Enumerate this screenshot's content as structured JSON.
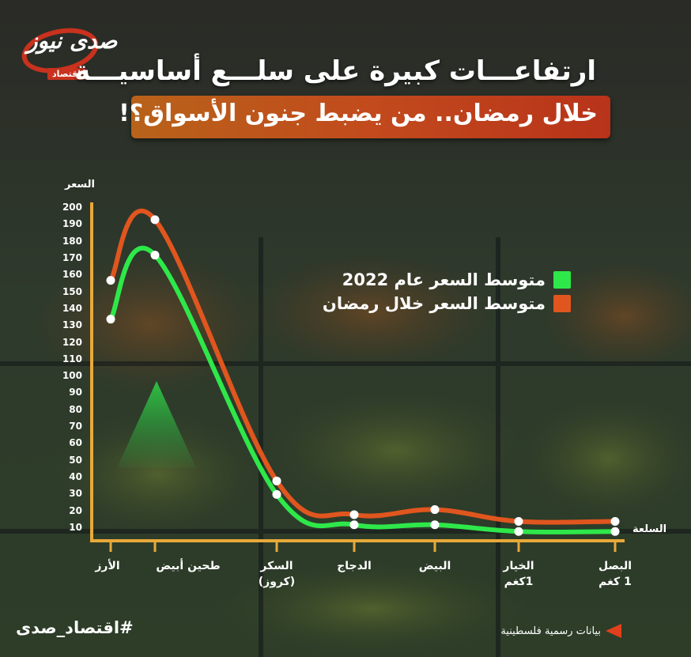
{
  "brand": {
    "logo_text": "صدى نيوز",
    "logo_sub": "اقتصاد",
    "hashtag": "#اقتصاد_صدى"
  },
  "header": {
    "title_line1": "ارتفاعـــات كبيرة على سلـــع أساسيـــة",
    "title_line2": "خلال رمضان.. من يضبط جنون الأسواق؟!"
  },
  "source": "بيانات رسمية فلسطينية",
  "colors": {
    "accent_orange": "#e0561e",
    "accent_green": "#2ee84a",
    "axis": "#e8a93a"
  },
  "chart_data": {
    "type": "line",
    "ylabel": "السعر",
    "xlabel": "السلعة",
    "ylim": [
      0,
      200
    ],
    "yticks": [
      10,
      20,
      30,
      40,
      50,
      60,
      70,
      80,
      90,
      100,
      110,
      120,
      130,
      140,
      150,
      160,
      170,
      180,
      190,
      200
    ],
    "categories": [
      {
        "line1": "الأرز",
        "line2": ""
      },
      {
        "line1": "طحين أبيض",
        "line2": ""
      },
      {
        "line1": "السكر",
        "line2": "(كروز)"
      },
      {
        "line1": "الدجاج",
        "line2": ""
      },
      {
        "line1": "البيض",
        "line2": ""
      },
      {
        "line1": "الخيار",
        "line2": "1كغم"
      },
      {
        "line1": "البصل",
        "line2": "1 كغم"
      }
    ],
    "series": [
      {
        "name": "متوسط السعر عام 2022",
        "color": "#2ee84a",
        "values": [
          134,
          172,
          30,
          12,
          12,
          8,
          8
        ]
      },
      {
        "name": "متوسط السعر خلال رمضان",
        "color": "#e0561e",
        "values": [
          157,
          193,
          38,
          18,
          21,
          14,
          14
        ]
      }
    ]
  }
}
